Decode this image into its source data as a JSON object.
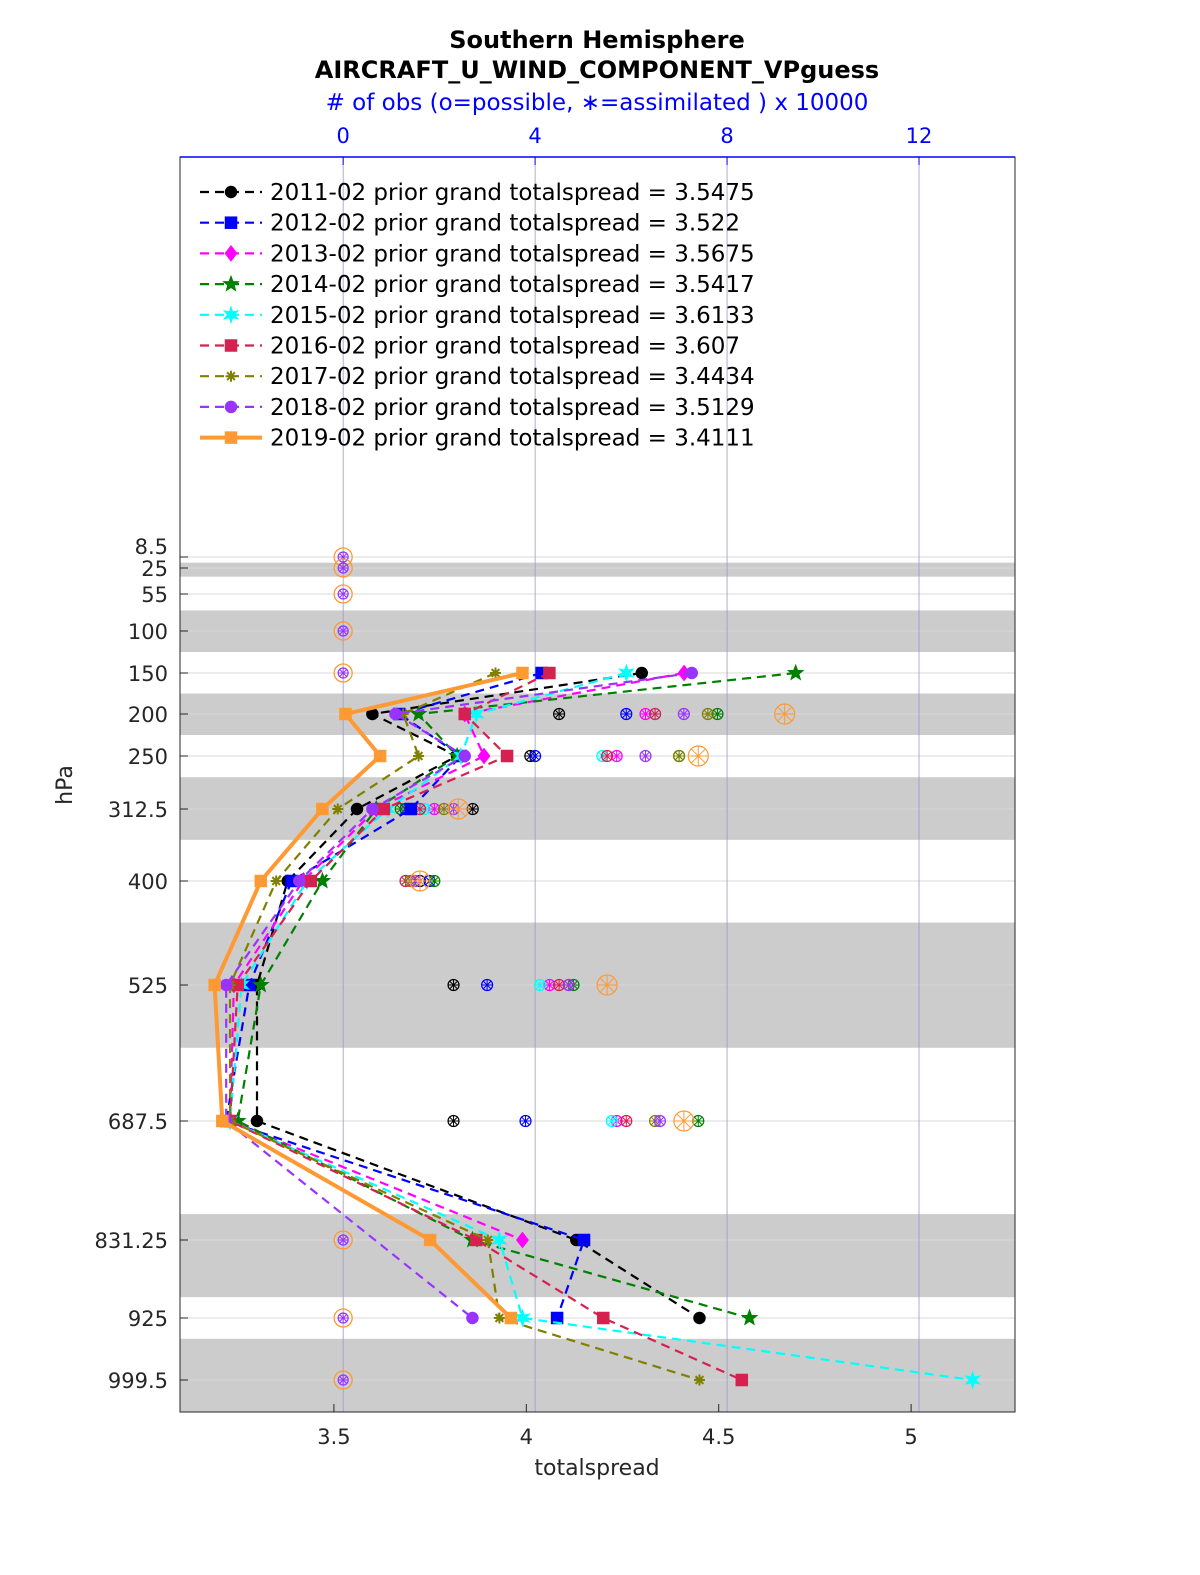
{
  "chart_data": {
    "type": "line",
    "title": "Southern Hemisphere",
    "subtitle": "AIRCRAFT_U_WIND_COMPONENT_VPguess",
    "top_axis_label": "# of obs (o=possible, ∗=assimilated ) x 10000",
    "xlabel": "totalspread",
    "ylabel": "hPa",
    "xlim": [
      3.1,
      5.27
    ],
    "x_ticks": [
      "3.5",
      "4",
      "4.5",
      "5"
    ],
    "top_xlim": [
      -3.4,
      14.0
    ],
    "top_ticks": [
      "0",
      "4",
      "8",
      "12"
    ],
    "y_scale": "pressure (reversed)",
    "y_ticks": [
      "8.5",
      "25",
      "55",
      "100",
      "150",
      "200",
      "250",
      "312.5",
      "400",
      "525",
      "687.5",
      "831.25",
      "925",
      "999.5"
    ],
    "levels": [
      8.5,
      25,
      55,
      100,
      150,
      200,
      250,
      312.5,
      400,
      525,
      687.5,
      831.25,
      925,
      999.5
    ],
    "shaded_level_bands": [
      [
        17,
        35
      ],
      [
        75,
        125
      ],
      [
        175,
        225
      ],
      [
        275,
        350
      ],
      [
        450,
        600
      ],
      [
        800,
        900
      ],
      [
        950,
        1050
      ]
    ],
    "grid": true,
    "legend_position": "top-left",
    "colors": {
      "top_axis": "#0000ff",
      "band": "#cccccc",
      "grid": "#d8d8d8",
      "top_grid": "#9999cc",
      "possible_marker": "#ff9933"
    },
    "series": [
      {
        "name": "2011-02 prior grand totalspread = 3.5475",
        "color": "#000000",
        "marker": "circle",
        "line": "dashed",
        "levels": [
          150,
          200,
          250,
          312.5,
          400,
          525,
          687.5,
          831.25,
          925
        ],
        "values": [
          4.3,
          3.6,
          3.82,
          3.56,
          3.38,
          3.3,
          3.3,
          4.13,
          4.45
        ],
        "obs_levels": [
          200,
          250,
          312.5,
          400,
          525,
          687.5
        ],
        "obs_possible": [
          4.5,
          3.9,
          2.7,
          1.6,
          2.3,
          2.3
        ]
      },
      {
        "name": "2012-02 prior grand totalspread = 3.522",
        "color": "#0000ff",
        "marker": "square",
        "line": "dashed",
        "levels": [
          150,
          200,
          250,
          312.5,
          400,
          525,
          687.5,
          831.25,
          925
        ],
        "values": [
          4.04,
          3.67,
          3.83,
          3.7,
          3.39,
          3.28,
          3.22,
          4.15,
          4.08
        ],
        "obs_levels": [
          200,
          250,
          312.5,
          400,
          525,
          687.5
        ],
        "obs_possible": [
          5.9,
          4.0,
          1.3,
          1.8,
          3.0,
          3.8
        ]
      },
      {
        "name": "2013-02 prior grand totalspread = 3.5675",
        "color": "#ff00ff",
        "marker": "diamond",
        "line": "dashed",
        "levels": [
          150,
          200,
          250,
          312.5,
          400,
          525,
          687.5,
          831.25
        ],
        "values": [
          4.41,
          3.84,
          3.89,
          3.61,
          3.42,
          3.24,
          3.23,
          3.99
        ],
        "obs_levels": [
          200,
          250,
          312.5,
          400,
          525,
          687.5
        ],
        "obs_possible": [
          6.3,
          5.7,
          1.9,
          1.4,
          4.3,
          5.7
        ]
      },
      {
        "name": "2014-02 prior grand totalspread = 3.5417",
        "color": "#008000",
        "marker": "pentagram",
        "line": "dashed",
        "levels": [
          150,
          200,
          250,
          312.5,
          400,
          525,
          687.5,
          831.25,
          925
        ],
        "values": [
          4.7,
          3.72,
          3.82,
          3.61,
          3.47,
          3.31,
          3.25,
          3.86,
          4.58
        ],
        "obs_levels": [
          200,
          250,
          312.5,
          400,
          525,
          687.5
        ],
        "obs_possible": [
          7.8,
          7.0,
          1.2,
          1.9,
          4.8,
          7.4
        ]
      },
      {
        "name": "2015-02 prior grand totalspread = 3.6133",
        "color": "#00ffff",
        "marker": "hexagram",
        "line": "dashed",
        "levels": [
          150,
          200,
          250,
          312.5,
          400,
          525,
          687.5,
          831.25,
          925,
          999.5
        ],
        "values": [
          4.26,
          3.87,
          3.83,
          3.64,
          3.43,
          3.26,
          3.23,
          3.93,
          3.99,
          5.16
        ],
        "obs_levels": [
          200,
          250,
          312.5,
          400,
          525,
          687.5
        ],
        "obs_possible": [
          6.5,
          5.4,
          1.7,
          1.3,
          4.1,
          5.6
        ]
      },
      {
        "name": "2016-02 prior grand totalspread = 3.607",
        "color": "#d6204f",
        "marker": "square",
        "line": "dashed",
        "levels": [
          150,
          200,
          250,
          312.5,
          400,
          525,
          687.5,
          831.25,
          925,
          999.5
        ],
        "values": [
          4.06,
          3.84,
          3.95,
          3.63,
          3.44,
          3.25,
          3.23,
          3.87,
          4.2,
          4.56
        ],
        "obs_levels": [
          200,
          250,
          312.5,
          400,
          525,
          687.5
        ],
        "obs_possible": [
          6.5,
          5.5,
          1.6,
          1.3,
          4.5,
          5.9
        ]
      },
      {
        "name": "2017-02 prior grand totalspread = 3.4434",
        "color": "#808000",
        "marker": "asterisk",
        "line": "dashed",
        "levels": [
          150,
          200,
          250,
          312.5,
          400,
          525,
          687.5,
          831.25,
          925,
          999.5
        ],
        "values": [
          3.92,
          3.68,
          3.72,
          3.51,
          3.35,
          3.23,
          3.23,
          3.9,
          3.93,
          4.45
        ],
        "obs_levels": [
          200,
          250,
          312.5,
          400,
          525,
          687.5
        ],
        "obs_possible": [
          7.6,
          7.0,
          2.1,
          1.4,
          4.7,
          6.5
        ]
      },
      {
        "name": "2018-02 prior grand totalspread = 3.5129",
        "color": "#9933ff",
        "marker": "circle",
        "line": "dashed",
        "levels": [
          150,
          200,
          250,
          312.5,
          400,
          525,
          687.5,
          925
        ],
        "values": [
          4.43,
          3.66,
          3.84,
          3.6,
          3.41,
          3.22,
          3.22,
          3.86
        ],
        "obs_levels": [
          200,
          250,
          312.5,
          400,
          525,
          687.5
        ],
        "obs_possible": [
          7.1,
          6.3,
          2.3,
          1.5,
          4.7,
          6.6
        ]
      },
      {
        "name": "2019-02 prior grand totalspread = 3.4111",
        "color": "#ff9933",
        "marker": "square",
        "line": "solid",
        "levels": [
          150,
          200,
          250,
          312.5,
          400,
          525,
          687.5,
          831.25,
          925
        ],
        "values": [
          3.99,
          3.53,
          3.62,
          3.47,
          3.31,
          3.19,
          3.21,
          3.75,
          3.96
        ],
        "obs_levels": [
          200,
          250,
          312.5,
          400,
          525,
          687.5
        ],
        "obs_possible": [
          9.2,
          7.4,
          2.4,
          1.6,
          5.5,
          7.1
        ]
      }
    ],
    "zero_obs_levels": [
      8.5,
      25,
      55,
      100,
      150,
      831.25,
      925,
      999.5
    ]
  }
}
